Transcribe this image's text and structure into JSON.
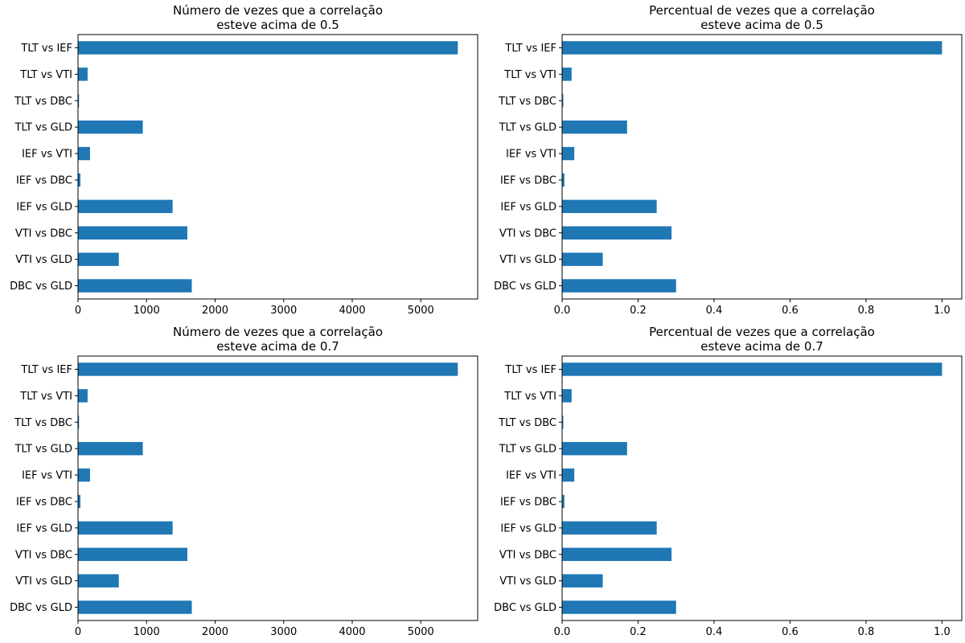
{
  "chart_data": [
    {
      "type": "bar",
      "orientation": "horizontal",
      "title": "Número de vezes que a correlação\nesteve acima de 0.5",
      "categories": [
        "TLT vs IEF",
        "TLT vs VTI",
        "TLT vs DBC",
        "TLT vs GLD",
        "IEF vs VTI",
        "IEF vs DBC",
        "IEF vs GLD",
        "VTI vs DBC",
        "VTI vs GLD",
        "DBC vs GLD"
      ],
      "values": [
        5540,
        140,
        15,
        945,
        175,
        35,
        1380,
        1595,
        595,
        1660
      ],
      "xlim": [
        0,
        5830
      ],
      "xticks": [
        0,
        1000,
        2000,
        3000,
        4000,
        5000
      ],
      "xlabel": "",
      "ylabel": "",
      "color": "#1f77b4"
    },
    {
      "type": "bar",
      "orientation": "horizontal",
      "title": "Percentual de vezes que a correlação\nesteve acima de 0.5",
      "categories": [
        "TLT vs IEF",
        "TLT vs VTI",
        "TLT vs DBC",
        "TLT vs GLD",
        "IEF vs VTI",
        "IEF vs DBC",
        "IEF vs GLD",
        "VTI vs DBC",
        "VTI vs GLD",
        "DBC vs GLD"
      ],
      "values": [
        1.0,
        0.025,
        0.003,
        0.171,
        0.032,
        0.006,
        0.249,
        0.288,
        0.107,
        0.3
      ],
      "xlim": [
        0,
        1.052
      ],
      "xticks": [
        0.0,
        0.2,
        0.4,
        0.6,
        0.8,
        1.0
      ],
      "xlabel": "",
      "ylabel": "",
      "color": "#1f77b4"
    },
    {
      "type": "bar",
      "orientation": "horizontal",
      "title": "Número de vezes que a correlação\nesteve acima de 0.7",
      "categories": [
        "TLT vs IEF",
        "TLT vs VTI",
        "TLT vs DBC",
        "TLT vs GLD",
        "IEF vs VTI",
        "IEF vs DBC",
        "IEF vs GLD",
        "VTI vs DBC",
        "VTI vs GLD",
        "DBC vs GLD"
      ],
      "values": [
        5540,
        140,
        15,
        945,
        175,
        35,
        1380,
        1595,
        595,
        1660
      ],
      "xlim": [
        0,
        5830
      ],
      "xticks": [
        0,
        1000,
        2000,
        3000,
        4000,
        5000
      ],
      "xlabel": "",
      "ylabel": "",
      "color": "#1f77b4"
    },
    {
      "type": "bar",
      "orientation": "horizontal",
      "title": "Percentual de vezes que a correlação\nesteve acima de 0.7",
      "categories": [
        "TLT vs IEF",
        "TLT vs VTI",
        "TLT vs DBC",
        "TLT vs GLD",
        "IEF vs VTI",
        "IEF vs DBC",
        "IEF vs GLD",
        "VTI vs DBC",
        "VTI vs GLD",
        "DBC vs GLD"
      ],
      "values": [
        1.0,
        0.025,
        0.003,
        0.171,
        0.032,
        0.006,
        0.249,
        0.288,
        0.107,
        0.3
      ],
      "xlim": [
        0,
        1.052
      ],
      "xticks": [
        0.0,
        0.2,
        0.4,
        0.6,
        0.8,
        1.0
      ],
      "xlabel": "",
      "ylabel": "",
      "color": "#1f77b4"
    }
  ]
}
